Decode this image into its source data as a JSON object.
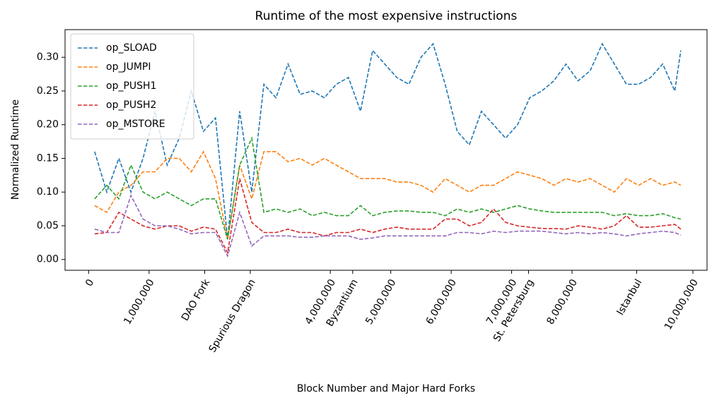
{
  "chart_data": {
    "type": "line",
    "title": "Runtime of the most expensive instructions",
    "xlabel": "Block Number and Major Hard Forks",
    "ylabel": "Normalized Runtime",
    "x": [
      100000,
      300000,
      500000,
      700000,
      900000,
      1100000,
      1300000,
      1500000,
      1700000,
      1900000,
      2100000,
      2300000,
      2500000,
      2700000,
      2900000,
      3100000,
      3300000,
      3500000,
      3700000,
      3900000,
      4100000,
      4300000,
      4500000,
      4700000,
      4900000,
      5100000,
      5300000,
      5500000,
      5700000,
      5900000,
      6100000,
      6300000,
      6500000,
      6700000,
      6900000,
      7100000,
      7300000,
      7500000,
      7700000,
      7900000,
      8100000,
      8300000,
      8500000,
      8700000,
      8900000,
      9100000,
      9300000,
      9500000,
      9700000,
      9800000
    ],
    "series": [
      {
        "name": "op_SLOAD",
        "color": "#1f77b4",
        "values": [
          0.16,
          0.1,
          0.15,
          0.1,
          0.15,
          0.22,
          0.14,
          0.18,
          0.25,
          0.19,
          0.21,
          0.03,
          0.22,
          0.1,
          0.26,
          0.24,
          0.29,
          0.245,
          0.25,
          0.24,
          0.26,
          0.27,
          0.22,
          0.31,
          0.29,
          0.27,
          0.26,
          0.3,
          0.32,
          0.26,
          0.19,
          0.17,
          0.22,
          0.2,
          0.18,
          0.2,
          0.24,
          0.25,
          0.265,
          0.29,
          0.265,
          0.28,
          0.32,
          0.29,
          0.26,
          0.26,
          0.27,
          0.29,
          0.25,
          0.31
        ]
      },
      {
        "name": "op_JUMPI",
        "color": "#ff7f0e",
        "values": [
          0.08,
          0.07,
          0.1,
          0.11,
          0.13,
          0.13,
          0.15,
          0.15,
          0.13,
          0.16,
          0.12,
          0.03,
          0.14,
          0.09,
          0.16,
          0.16,
          0.145,
          0.15,
          0.14,
          0.15,
          0.14,
          0.13,
          0.12,
          0.12,
          0.12,
          0.115,
          0.115,
          0.11,
          0.1,
          0.12,
          0.11,
          0.1,
          0.11,
          0.11,
          0.12,
          0.13,
          0.125,
          0.12,
          0.11,
          0.12,
          0.115,
          0.12,
          0.11,
          0.1,
          0.12,
          0.11,
          0.12,
          0.11,
          0.115,
          0.11
        ]
      },
      {
        "name": "op_PUSH1",
        "color": "#2ca02c",
        "values": [
          0.09,
          0.11,
          0.09,
          0.14,
          0.1,
          0.09,
          0.1,
          0.09,
          0.08,
          0.09,
          0.09,
          0.03,
          0.14,
          0.18,
          0.07,
          0.075,
          0.07,
          0.075,
          0.065,
          0.07,
          0.065,
          0.065,
          0.08,
          0.065,
          0.07,
          0.072,
          0.072,
          0.07,
          0.07,
          0.065,
          0.075,
          0.07,
          0.075,
          0.07,
          0.075,
          0.08,
          0.075,
          0.072,
          0.07,
          0.07,
          0.07,
          0.07,
          0.07,
          0.065,
          0.068,
          0.065,
          0.065,
          0.068,
          0.062,
          0.06
        ]
      },
      {
        "name": "op_PUSH2",
        "color": "#d62728",
        "values": [
          0.038,
          0.04,
          0.07,
          0.06,
          0.05,
          0.045,
          0.05,
          0.05,
          0.042,
          0.048,
          0.045,
          0.01,
          0.12,
          0.055,
          0.04,
          0.04,
          0.045,
          0.04,
          0.04,
          0.035,
          0.04,
          0.04,
          0.045,
          0.04,
          0.045,
          0.048,
          0.045,
          0.045,
          0.045,
          0.06,
          0.06,
          0.05,
          0.055,
          0.075,
          0.055,
          0.05,
          0.048,
          0.046,
          0.046,
          0.045,
          0.05,
          0.048,
          0.045,
          0.05,
          0.065,
          0.048,
          0.048,
          0.05,
          0.052,
          0.045
        ]
      },
      {
        "name": "op_MSTORE",
        "color": "#9467bd",
        "values": [
          0.045,
          0.04,
          0.04,
          0.095,
          0.06,
          0.05,
          0.05,
          0.045,
          0.038,
          0.04,
          0.04,
          0.005,
          0.07,
          0.02,
          0.035,
          0.035,
          0.035,
          0.033,
          0.033,
          0.035,
          0.035,
          0.035,
          0.03,
          0.032,
          0.035,
          0.035,
          0.035,
          0.035,
          0.035,
          0.035,
          0.04,
          0.04,
          0.038,
          0.042,
          0.04,
          0.042,
          0.042,
          0.042,
          0.04,
          0.038,
          0.04,
          0.038,
          0.04,
          0.038,
          0.035,
          0.038,
          0.04,
          0.042,
          0.04,
          0.036
        ]
      }
    ],
    "xlim": [
      -390000,
      10234000
    ],
    "ylim": [
      -0.016,
      0.341
    ],
    "xticks": [
      0,
      {
        "value": 1000000,
        "label": "1,000,000"
      },
      {
        "value": 1920000,
        "label": "DAO Fork"
      },
      {
        "value": 2675000,
        "label": "Spurious Dragon"
      },
      {
        "value": 4000000,
        "label": "4,000,000"
      },
      {
        "value": 4370000,
        "label": "Byzantium"
      },
      {
        "value": 5000000,
        "label": "5,000,000"
      },
      {
        "value": 6000000,
        "label": "6,000,000"
      },
      {
        "value": 7000000,
        "label": "7,000,000"
      },
      {
        "value": 7280000,
        "label": "St. Petersburg"
      },
      {
        "value": 8000000,
        "label": "8,000,000"
      },
      {
        "value": 9069000,
        "label": "Istanbul"
      },
      {
        "value": 10000000,
        "label": "10,000,000"
      }
    ],
    "yticks": [
      {
        "value": 0,
        "label": "0.00"
      },
      0.05,
      {
        "value": 0.1,
        "label": "0.10"
      },
      0.15,
      {
        "value": 0.2,
        "label": "0.20"
      },
      0.25,
      {
        "value": 0.3,
        "label": "0.30"
      }
    ],
    "legend": "upper left"
  }
}
